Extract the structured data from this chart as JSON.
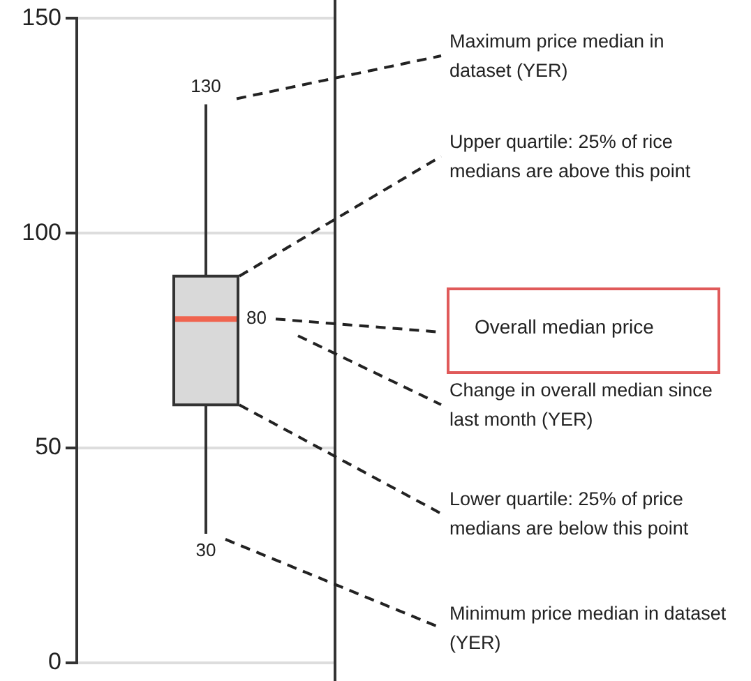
{
  "chart_data": {
    "type": "box",
    "categories": [
      null
    ],
    "boxes": [
      {
        "low": 30,
        "q1": 60,
        "median": 80,
        "q3": 90,
        "high": 130
      }
    ],
    "color": "#d9d9d9",
    "ylim": [
      0,
      150
    ],
    "yticks": [
      0,
      50,
      100,
      150
    ],
    "grid": "y",
    "tick_labels": "y",
    "legend": false,
    "annotations": [
      {
        "text": "130",
        "y": 130
      },
      "80",
      {
        "text": "30",
        "y": 30
      },
      "Maximum price median in dataset (YER)",
      "Upper quartile: 25% of rice medians are above this point",
      "Overall median price",
      "Change in overall median since last month (YER)",
      "Lower quartile: 25% of price medians are below this point",
      "Minimum price median in dataset (YER)"
    ]
  }
}
